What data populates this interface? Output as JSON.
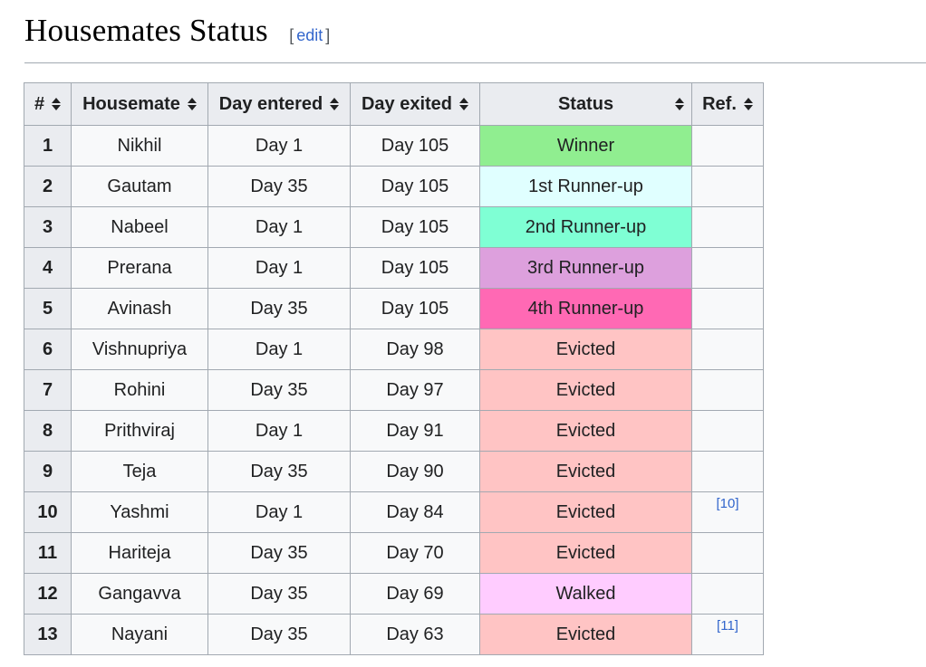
{
  "section": {
    "title": "Housemates Status",
    "edit_open": "[",
    "edit_label": "edit",
    "edit_close": "]"
  },
  "table": {
    "headers": {
      "num": "#",
      "housemate": "Housemate",
      "day_entered": "Day entered",
      "day_exited": "Day exited",
      "status": "Status",
      "ref": "Ref."
    },
    "rows": [
      {
        "num": "1",
        "name": "Nikhil",
        "entered": "Day 1",
        "exited": "Day 105",
        "status": "Winner",
        "status_color": "#90ee90",
        "ref": ""
      },
      {
        "num": "2",
        "name": "Gautam",
        "entered": "Day 35",
        "exited": "Day 105",
        "status": "1st Runner-up",
        "status_color": "#e0ffff",
        "ref": ""
      },
      {
        "num": "3",
        "name": "Nabeel",
        "entered": "Day 1",
        "exited": "Day 105",
        "status": "2nd Runner-up",
        "status_color": "#7fffd4",
        "ref": ""
      },
      {
        "num": "4",
        "name": "Prerana",
        "entered": "Day 1",
        "exited": "Day 105",
        "status": "3rd Runner-up",
        "status_color": "#dda0dd",
        "ref": ""
      },
      {
        "num": "5",
        "name": "Avinash",
        "entered": "Day 35",
        "exited": "Day 105",
        "status": "4th Runner-up",
        "status_color": "#ff69b4",
        "ref": ""
      },
      {
        "num": "6",
        "name": "Vishnupriya",
        "entered": "Day 1",
        "exited": "Day 98",
        "status": "Evicted",
        "status_color": "#ffc4c4",
        "ref": ""
      },
      {
        "num": "7",
        "name": "Rohini",
        "entered": "Day 35",
        "exited": "Day 97",
        "status": "Evicted",
        "status_color": "#ffc4c4",
        "ref": ""
      },
      {
        "num": "8",
        "name": "Prithviraj",
        "entered": "Day 1",
        "exited": "Day 91",
        "status": "Evicted",
        "status_color": "#ffc4c4",
        "ref": ""
      },
      {
        "num": "9",
        "name": "Teja",
        "entered": "Day 35",
        "exited": "Day 90",
        "status": "Evicted",
        "status_color": "#ffc4c4",
        "ref": ""
      },
      {
        "num": "10",
        "name": "Yashmi",
        "entered": "Day 1",
        "exited": "Day 84",
        "status": "Evicted",
        "status_color": "#ffc4c4",
        "ref": "[10]"
      },
      {
        "num": "11",
        "name": "Hariteja",
        "entered": "Day 35",
        "exited": "Day 70",
        "status": "Evicted",
        "status_color": "#ffc4c4",
        "ref": ""
      },
      {
        "num": "12",
        "name": "Gangavva",
        "entered": "Day 35",
        "exited": "Day 69",
        "status": "Walked",
        "status_color": "#ffccff",
        "ref": ""
      },
      {
        "num": "13",
        "name": "Nayani",
        "entered": "Day 35",
        "exited": "Day 63",
        "status": "Evicted",
        "status_color": "#ffc4c4",
        "ref": "[11]"
      }
    ]
  }
}
